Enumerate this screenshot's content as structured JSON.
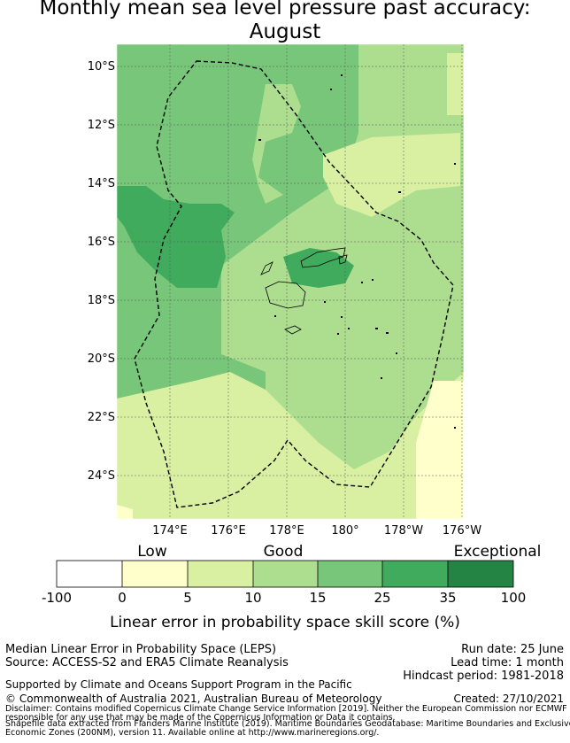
{
  "title_line1": "Monthly mean sea level pressure past accuracy:",
  "title_line2": "August",
  "lat_labels": [
    "10°S",
    "12°S",
    "14°S",
    "16°S",
    "18°S",
    "20°S",
    "22°S",
    "24°S"
  ],
  "lon_labels": [
    "174°E",
    "176°E",
    "178°E",
    "180°",
    "178°W",
    "176°W"
  ],
  "colorbar": {
    "categories": [
      "Low",
      "Good",
      "Exceptional"
    ],
    "ticks": [
      "-100",
      "0",
      "5",
      "10",
      "15",
      "25",
      "35",
      "100"
    ],
    "colors": [
      "#ffffff",
      "#ffffcc",
      "#d9f0a3",
      "#addd8e",
      "#78c679",
      "#41ab5d",
      "#238443"
    ],
    "title": "Linear error in probability space skill score (%)"
  },
  "info": {
    "method": "Median Linear Error in Probability Space (LEPS)",
    "source": "Source: ACCESS-S2 and ERA5 Climate Reanalysis",
    "run_date": "Run date: 25 June",
    "lead_time": "Lead time: 1 month",
    "hindcast": "Hindcast period: 1981-2018",
    "support": "Supported by Climate and Oceans Support Program in the Pacific",
    "copyright": "© Commonwealth of Australia 2021, Australian Bureau of Meteorology",
    "created": "Created: 27/10/2021",
    "disclaimer1": "Disclaimer: Contains modified Copernicus Climate Change Service Information [2019]. Neither the European Commission nor ECMWF is",
    "disclaimer2": "responsible for any use that may be made of the Copernicus Information or Data it contains.",
    "shapefile1": "Shapefile data extracted from Flanders Marine Institute (2019). Maritime Boundaries Geodatabase: Maritime Boundaries and Exclusive",
    "shapefile2": "Economic Zones (200NM), version 11. Available online at http://www.marineregions.org/."
  }
}
